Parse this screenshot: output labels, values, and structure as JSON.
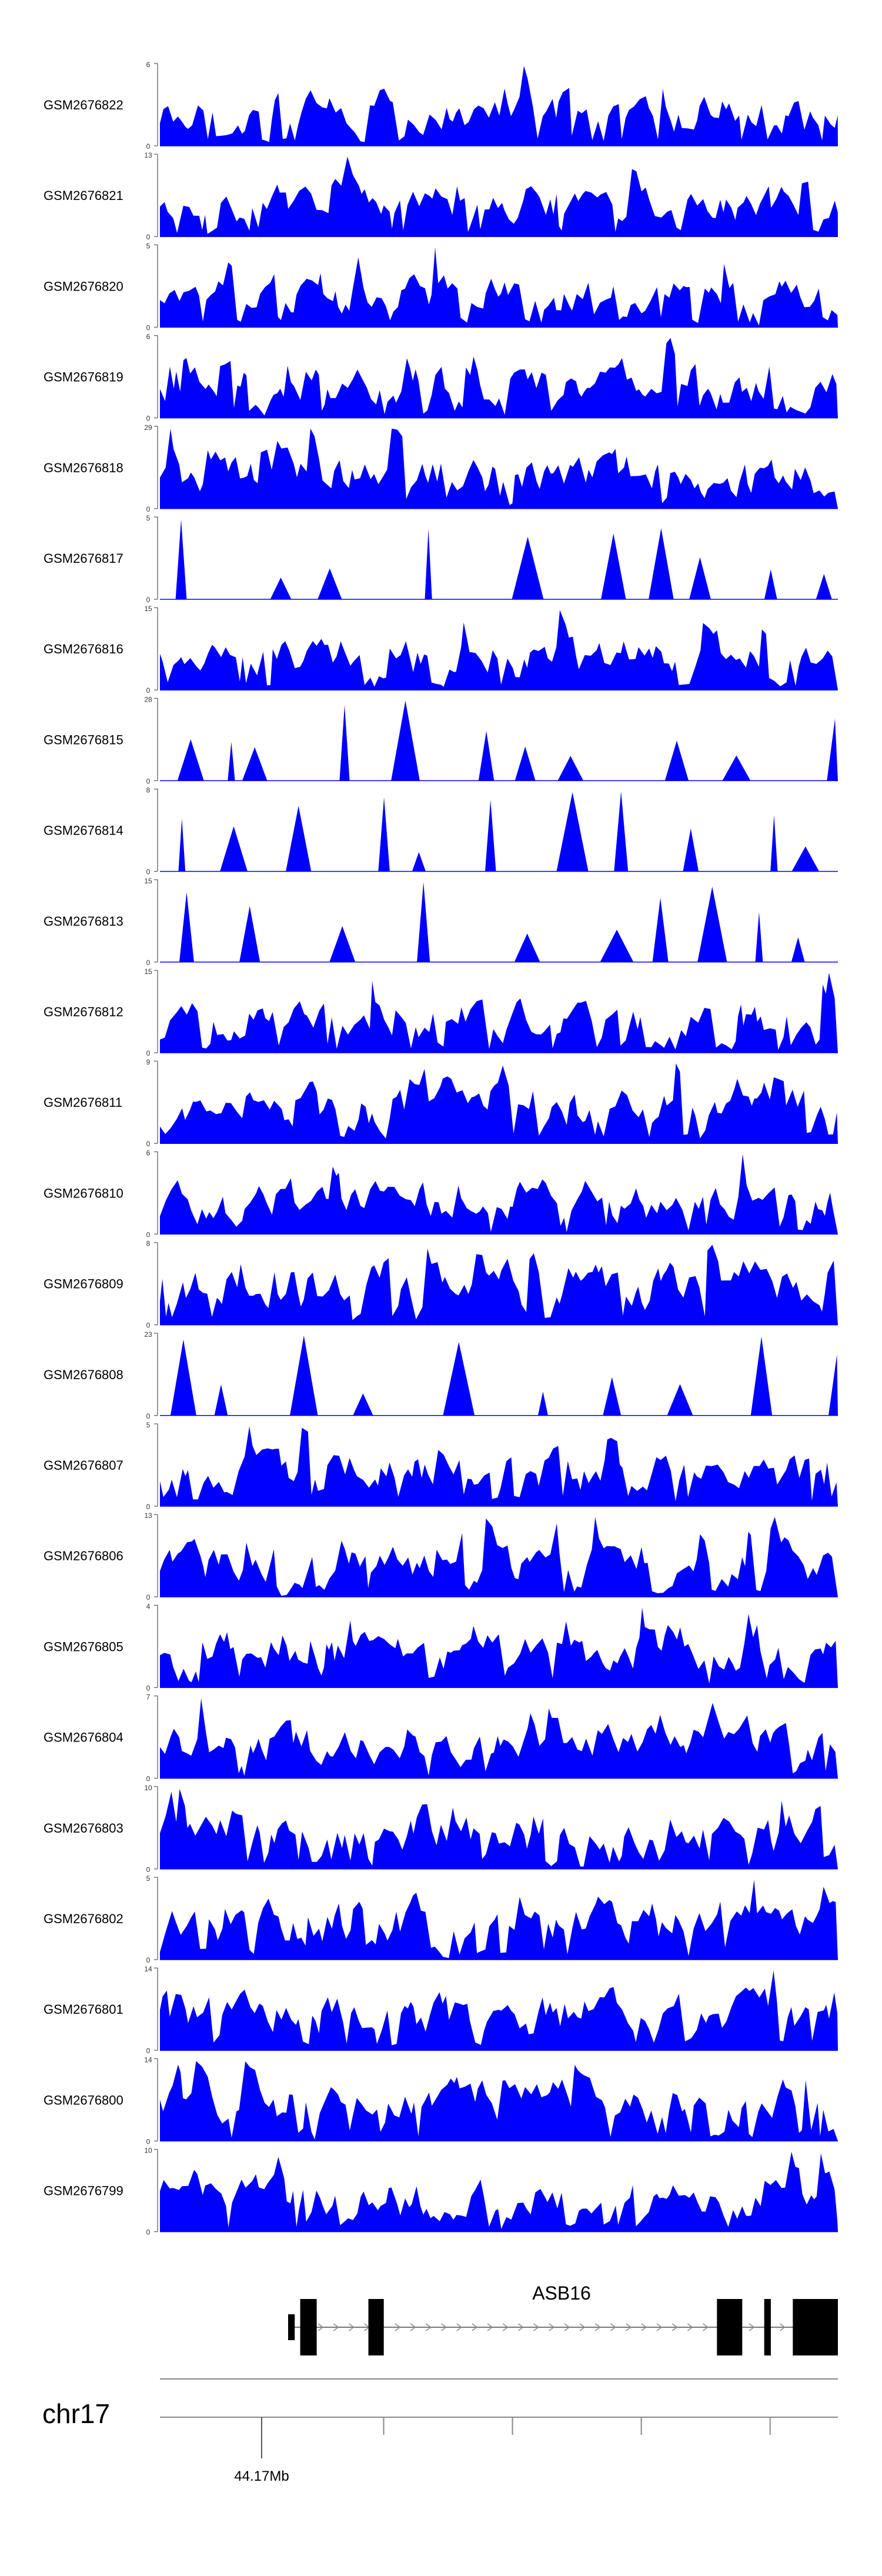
{
  "chart_data": {
    "type": "area",
    "fill_color": "#0000ff",
    "line_color": "#000000",
    "y_min_label": "0",
    "tracks": [
      {
        "name": "GSM2676822",
        "ymax_label": "6"
      },
      {
        "name": "GSM2676821",
        "ymax_label": "13"
      },
      {
        "name": "GSM2676820",
        "ymax_label": "5"
      },
      {
        "name": "GSM2676819",
        "ymax_label": "6"
      },
      {
        "name": "GSM2676818",
        "ymax_label": "29"
      },
      {
        "name": "GSM2676817",
        "ymax_label": "5"
      },
      {
        "name": "GSM2676816",
        "ymax_label": "15"
      },
      {
        "name": "GSM2676815",
        "ymax_label": "28"
      },
      {
        "name": "GSM2676814",
        "ymax_label": "8"
      },
      {
        "name": "GSM2676813",
        "ymax_label": "15"
      },
      {
        "name": "GSM2676812",
        "ymax_label": "15"
      },
      {
        "name": "GSM2676811",
        "ymax_label": "9"
      },
      {
        "name": "GSM2676810",
        "ymax_label": "6"
      },
      {
        "name": "GSM2676809",
        "ymax_label": "8"
      },
      {
        "name": "GSM2676808",
        "ymax_label": "23"
      },
      {
        "name": "GSM2676807",
        "ymax_label": "5"
      },
      {
        "name": "GSM2676806",
        "ymax_label": "13"
      },
      {
        "name": "GSM2676805",
        "ymax_label": "4"
      },
      {
        "name": "GSM2676804",
        "ymax_label": "7"
      },
      {
        "name": "GSM2676803",
        "ymax_label": "10"
      },
      {
        "name": "GSM2676802",
        "ymax_label": "5"
      },
      {
        "name": "GSM2676801",
        "ymax_label": "14"
      },
      {
        "name": "GSM2676800",
        "ymax_label": "14"
      },
      {
        "name": "GSM2676799",
        "ymax_label": "10"
      }
    ],
    "gene": {
      "name": "ASB16",
      "strand": "+",
      "exons": [
        [
          0.0,
          0.012
        ],
        [
          0.022,
          0.052
        ],
        [
          0.146,
          0.174
        ],
        [
          0.78,
          0.826
        ],
        [
          0.866,
          0.878
        ],
        [
          0.918,
          1.0
        ]
      ],
      "thin_start": 0.0,
      "thin_end": 1.0
    },
    "axis": {
      "chromosome": "chr17",
      "tick_label": "44.17Mb",
      "labeled_tick": 0.15,
      "minor_ticks": [
        0.33,
        0.52,
        0.71,
        0.9
      ]
    }
  }
}
